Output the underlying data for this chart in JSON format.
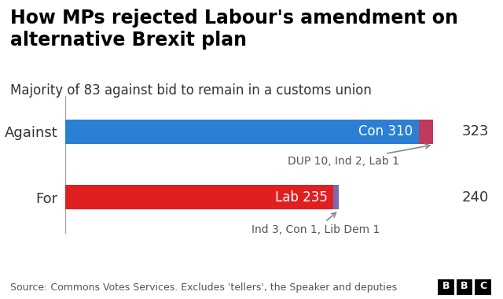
{
  "title": "How MPs rejected Labour's amendment on\nalternative Brexit plan",
  "subtitle": "Majority of 83 against bid to remain in a customs union",
  "source": "Source: Commons Votes Services. Excludes 'tellers', the Speaker and deputies",
  "categories": [
    "Against",
    "For"
  ],
  "bars": [
    {
      "label": "Against",
      "main_value": 310,
      "main_label": "Con 310",
      "main_color": "#2b7fd4",
      "extra_value": 13,
      "extra_label": "DUP 10, Ind 2, Lab 1",
      "extra_color": "#c0395e",
      "total": 323
    },
    {
      "label": "For",
      "main_value": 235,
      "main_label": "Lab 235",
      "main_color": "#e02020",
      "extra_value": 5,
      "extra_label": "Ind 3, Con 1, Lib Dem 1",
      "extra_color": "#7b68b0",
      "total": 240
    }
  ],
  "max_value": 323,
  "background_color": "#ffffff",
  "title_fontsize": 17,
  "subtitle_fontsize": 12,
  "label_fontsize": 13,
  "bar_label_fontsize": 12,
  "source_fontsize": 9,
  "total_fontsize": 13,
  "annotation_fontsize": 10,
  "bar_height": 0.38,
  "title_color": "#000000",
  "subtitle_color": "#333333",
  "source_color": "#555555",
  "total_color": "#333333",
  "annotation_color": "#555555",
  "bar_label_color": "#ffffff",
  "y_label_color": "#333333",
  "bbc_logo_color": "#ffffff",
  "bbc_bg_color": "#000000"
}
